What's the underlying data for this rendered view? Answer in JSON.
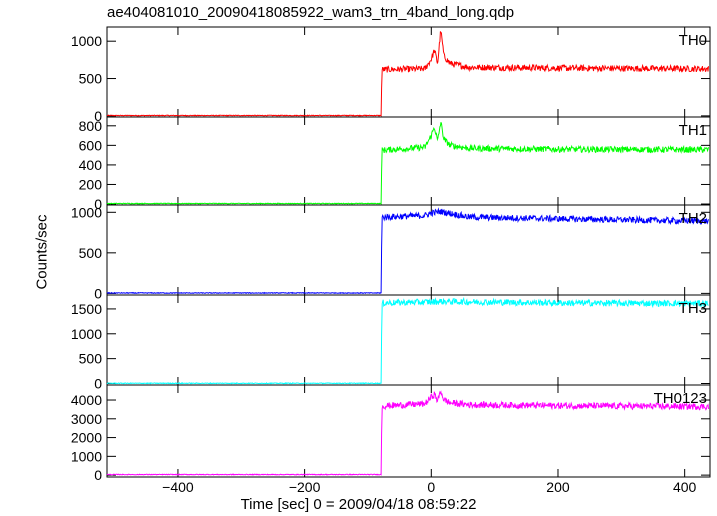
{
  "chart_data": {
    "type": "line",
    "title": "ae404081010_20090418085922_wam3_trn_4band_long.qdp",
    "xlabel": "Time [sec] 0 = 2009/04/18 08:59:22",
    "ylabel": "Counts/sec",
    "xlim": [
      -512,
      440
    ],
    "xticks": [
      -400,
      -200,
      0,
      200,
      400
    ],
    "onset_time": -78,
    "grid": false,
    "legend": "none",
    "panels": [
      {
        "name": "TH0",
        "color": "#ff0000",
        "ylim": [
          -15,
          1190
        ],
        "yticks": [
          0,
          500,
          1000
        ],
        "points": [
          [
            -512,
            5
          ],
          [
            -79,
            5
          ],
          [
            -78,
            620
          ],
          [
            -10,
            630
          ],
          [
            0,
            760
          ],
          [
            5,
            880
          ],
          [
            10,
            700
          ],
          [
            15,
            1150
          ],
          [
            20,
            800
          ],
          [
            30,
            700
          ],
          [
            60,
            650
          ],
          [
            200,
            640
          ],
          [
            440,
            630
          ]
        ]
      },
      {
        "name": "TH1",
        "color": "#00ff00",
        "ylim": [
          -10,
          890
        ],
        "yticks": [
          0,
          200,
          400,
          600,
          800
        ],
        "points": [
          [
            -512,
            5
          ],
          [
            -79,
            5
          ],
          [
            -78,
            550
          ],
          [
            -10,
            580
          ],
          [
            0,
            700
          ],
          [
            5,
            790
          ],
          [
            10,
            640
          ],
          [
            15,
            840
          ],
          [
            20,
            660
          ],
          [
            30,
            600
          ],
          [
            60,
            570
          ],
          [
            200,
            560
          ],
          [
            440,
            555
          ]
        ]
      },
      {
        "name": "TH2",
        "color": "#0000ff",
        "ylim": [
          -20,
          1090
        ],
        "yticks": [
          0,
          500,
          1000
        ],
        "points": [
          [
            -512,
            5
          ],
          [
            -79,
            5
          ],
          [
            -78,
            940
          ],
          [
            -10,
            960
          ],
          [
            0,
            990
          ],
          [
            15,
            1010
          ],
          [
            60,
            940
          ],
          [
            200,
            920
          ],
          [
            440,
            890
          ]
        ]
      },
      {
        "name": "TH3",
        "color": "#00ffff",
        "ylim": [
          -30,
          1780
        ],
        "yticks": [
          0,
          500,
          1000,
          1500
        ],
        "points": [
          [
            -512,
            5
          ],
          [
            -79,
            5
          ],
          [
            -78,
            1620
          ],
          [
            0,
            1640
          ],
          [
            15,
            1650
          ],
          [
            200,
            1620
          ],
          [
            440,
            1610
          ]
        ]
      },
      {
        "name": "TH0123",
        "color": "#ff00ff",
        "ylim": [
          -100,
          4800
        ],
        "yticks": [
          0,
          1000,
          2000,
          3000,
          4000
        ],
        "points": [
          [
            -512,
            30
          ],
          [
            -79,
            30
          ],
          [
            -78,
            3680
          ],
          [
            -10,
            3800
          ],
          [
            0,
            4150
          ],
          [
            5,
            4300
          ],
          [
            10,
            3950
          ],
          [
            15,
            4480
          ],
          [
            20,
            4000
          ],
          [
            30,
            3850
          ],
          [
            60,
            3750
          ],
          [
            200,
            3700
          ],
          [
            440,
            3650
          ]
        ]
      }
    ]
  }
}
